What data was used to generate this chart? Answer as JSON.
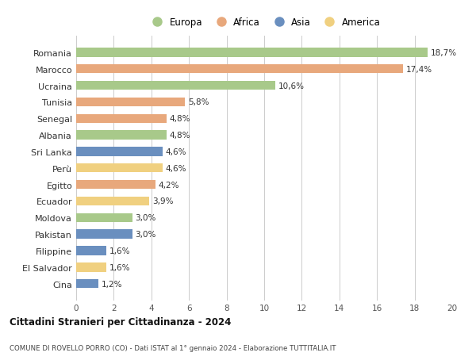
{
  "countries": [
    "Romania",
    "Marocco",
    "Ucraina",
    "Tunisia",
    "Senegal",
    "Albania",
    "Sri Lanka",
    "Perù",
    "Egitto",
    "Ecuador",
    "Moldova",
    "Pakistan",
    "Filippine",
    "El Salvador",
    "Cina"
  ],
  "values": [
    18.7,
    17.4,
    10.6,
    5.8,
    4.8,
    4.8,
    4.6,
    4.6,
    4.2,
    3.9,
    3.0,
    3.0,
    1.6,
    1.6,
    1.2
  ],
  "labels": [
    "18,7%",
    "17,4%",
    "10,6%",
    "5,8%",
    "4,8%",
    "4,8%",
    "4,6%",
    "4,6%",
    "4,2%",
    "3,9%",
    "3,0%",
    "3,0%",
    "1,6%",
    "1,6%",
    "1,2%"
  ],
  "continents": [
    "Europa",
    "Africa",
    "Europa",
    "Africa",
    "Africa",
    "Europa",
    "Asia",
    "America",
    "Africa",
    "America",
    "Europa",
    "Asia",
    "Asia",
    "America",
    "Asia"
  ],
  "colors": {
    "Europa": "#a8c98a",
    "Africa": "#e8a87c",
    "Asia": "#6a8fbf",
    "America": "#f0d080"
  },
  "xlim": [
    0,
    20
  ],
  "xticks": [
    0,
    2,
    4,
    6,
    8,
    10,
    12,
    14,
    16,
    18,
    20
  ],
  "title": "Cittadini Stranieri per Cittadinanza - 2024",
  "subtitle": "COMUNE DI ROVELLO PORRO (CO) - Dati ISTAT al 1° gennaio 2024 - Elaborazione TUTTITALIA.IT",
  "background_color": "#ffffff",
  "grid_color": "#cccccc",
  "bar_height": 0.55,
  "legend_order": [
    "Europa",
    "Africa",
    "Asia",
    "America"
  ],
  "label_fontsize": 7.5,
  "ytick_fontsize": 8.0,
  "xtick_fontsize": 7.5
}
